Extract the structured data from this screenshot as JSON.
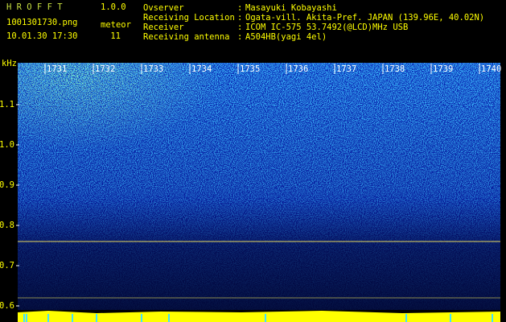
{
  "header": {
    "app": "H R O F F T",
    "version": "1.0.0",
    "file": "1001301730.png",
    "datetime": "10.01.30 17:30",
    "meteor_label": "meteor",
    "meteor_count": 11,
    "separator": ":",
    "info": [
      {
        "label": "Ovserver",
        "value": "Masayuki Kobayashi"
      },
      {
        "label": "Receiving Location",
        "value": "Ogata-vill. Akita-Pref. JAPAN (139.96E, 40.02N)"
      },
      {
        "label": "Receiver",
        "value": "ICOM IC-575 53.7492(@LCD)MHz USB"
      },
      {
        "label": "Receiving antenna",
        "value": "A504HB(yagi 4el)"
      }
    ]
  },
  "axes": {
    "y_unit": "kHz",
    "y_labels": [
      "1.1",
      "1.0",
      "0.9",
      "0.8",
      "0.7",
      "0.6"
    ],
    "x_labels": [
      "1731",
      "1732",
      "1733",
      "1734",
      "1735",
      "1736",
      "1737",
      "1738",
      "1739",
      "1740"
    ]
  }
}
